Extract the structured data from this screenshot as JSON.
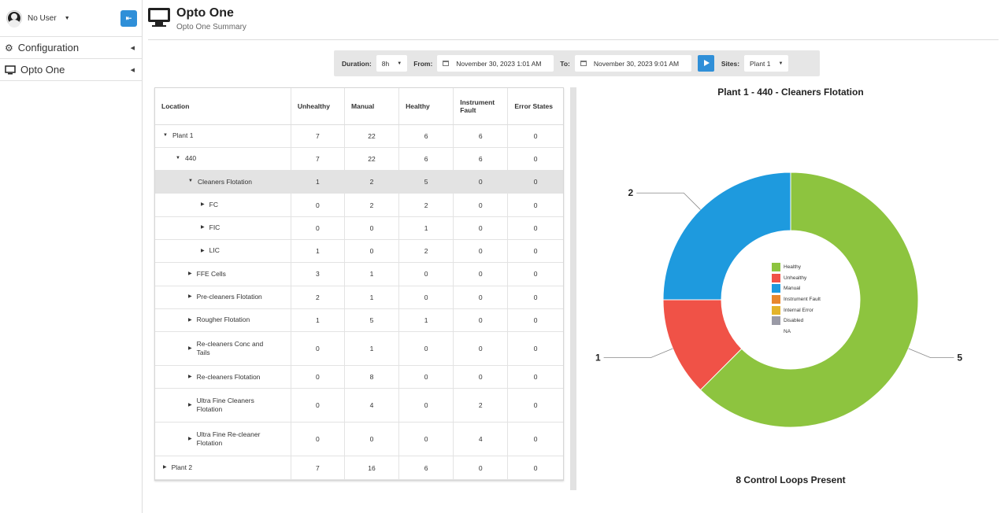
{
  "sidebar": {
    "user": "No User",
    "items": [
      {
        "label": "Configuration",
        "icon": "gear-icon"
      },
      {
        "label": "Opto One",
        "icon": "monitor-icon"
      }
    ]
  },
  "header": {
    "title": "Opto One",
    "subtitle": "Opto One Summary"
  },
  "toolbar": {
    "duration_label": "Duration:",
    "duration_value": "8h",
    "from_label": "From:",
    "from_value": "November 30, 2023 1:01 AM",
    "to_label": "To:",
    "to_value": "November 30, 2023 9:01 AM",
    "sites_label": "Sites:",
    "sites_value": "Plant 1"
  },
  "table": {
    "headers": [
      "Location",
      "Unhealthy",
      "Manual",
      "Healthy",
      "Instrument Fault",
      "Error States"
    ],
    "rows": [
      {
        "name": "Plant 1",
        "depth": 0,
        "expanded": true,
        "values": [
          "7",
          "22",
          "6",
          "6",
          "0"
        ]
      },
      {
        "name": "440",
        "depth": 1,
        "expanded": true,
        "values": [
          "7",
          "22",
          "6",
          "6",
          "0"
        ]
      },
      {
        "name": "Cleaners Flotation",
        "depth": 2,
        "expanded": true,
        "selected": true,
        "values": [
          "1",
          "2",
          "5",
          "0",
          "0"
        ]
      },
      {
        "name": "FC",
        "depth": 3,
        "expanded": false,
        "values": [
          "0",
          "2",
          "2",
          "0",
          "0"
        ]
      },
      {
        "name": "FIC",
        "depth": 3,
        "expanded": false,
        "values": [
          "0",
          "0",
          "1",
          "0",
          "0"
        ]
      },
      {
        "name": "LIC",
        "depth": 3,
        "expanded": false,
        "values": [
          "1",
          "0",
          "2",
          "0",
          "0"
        ]
      },
      {
        "name": "FFE Cells",
        "depth": 2,
        "expanded": false,
        "values": [
          "3",
          "1",
          "0",
          "0",
          "0"
        ]
      },
      {
        "name": "Pre-cleaners Flotation",
        "depth": 2,
        "expanded": false,
        "values": [
          "2",
          "1",
          "0",
          "0",
          "0"
        ]
      },
      {
        "name": "Rougher Flotation",
        "depth": 2,
        "expanded": false,
        "values": [
          "1",
          "5",
          "1",
          "0",
          "0"
        ]
      },
      {
        "name": "Re-cleaners Conc and Tails",
        "depth": 2,
        "expanded": false,
        "tall": true,
        "values": [
          "0",
          "1",
          "0",
          "0",
          "0"
        ]
      },
      {
        "name": "Re-cleaners Flotation",
        "depth": 2,
        "expanded": false,
        "values": [
          "0",
          "8",
          "0",
          "0",
          "0"
        ]
      },
      {
        "name": "Ultra Fine Cleaners Flotation",
        "depth": 2,
        "expanded": false,
        "tall": true,
        "values": [
          "0",
          "4",
          "0",
          "2",
          "0"
        ]
      },
      {
        "name": "Ultra Fine Re-cleaner Flotation",
        "depth": 2,
        "expanded": false,
        "tall": true,
        "values": [
          "0",
          "0",
          "0",
          "4",
          "0"
        ]
      },
      {
        "name": "Plant 2",
        "depth": 0,
        "expanded": false,
        "values": [
          "7",
          "16",
          "6",
          "0",
          "0"
        ]
      }
    ]
  },
  "chart_data": {
    "type": "pie",
    "title": "Plant 1 - 440 - Cleaners Flotation",
    "footer": "8 Control Loops Present",
    "slices": [
      {
        "label": "Healthy",
        "value": 5,
        "color": "#8dc43f"
      },
      {
        "label": "Unhealthy",
        "value": 1,
        "color": "#f05247"
      },
      {
        "label": "Manual",
        "value": 2,
        "color": "#1e9ade"
      }
    ],
    "legend": [
      {
        "label": "Healthy",
        "color": "#8dc43f"
      },
      {
        "label": "Unhealthy",
        "color": "#f05247"
      },
      {
        "label": "Manual",
        "color": "#1e9ade"
      },
      {
        "label": "Instrument Fault",
        "color": "#e8872d"
      },
      {
        "label": "Internal Error",
        "color": "#e3b32a"
      },
      {
        "label": "Disabled",
        "color": "#9a9aa6"
      },
      {
        "label": "NA",
        "color": ""
      }
    ],
    "data_labels": [
      "5",
      "1",
      "2"
    ]
  }
}
